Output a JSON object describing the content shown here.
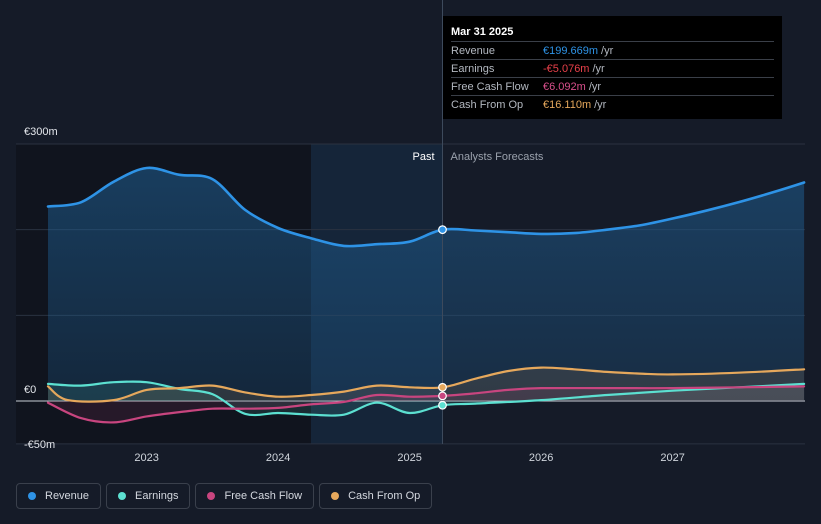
{
  "chart_data": {
    "type": "line",
    "title": "",
    "y_unit": "€",
    "ylim": [
      -50,
      300
    ],
    "y_tick_labels": [
      {
        "value": 300,
        "label": "€300m"
      },
      {
        "value": 0,
        "label": "€0"
      },
      {
        "value": -50,
        "label": "-€50m"
      }
    ],
    "x_range": [
      2022.25,
      2028.0
    ],
    "x_ticks": [
      {
        "value": 2023,
        "label": "2023"
      },
      {
        "value": 2024,
        "label": "2024"
      },
      {
        "value": 2025,
        "label": "2025"
      },
      {
        "value": 2026,
        "label": "2026"
      },
      {
        "value": 2027,
        "label": "2027"
      }
    ],
    "divider_x": 2025.25,
    "highlight_start_x": 2024.25,
    "past_label": "Past",
    "forecast_label": "Analysts Forecasts",
    "series": [
      {
        "name": "Revenue",
        "color": "#2e93e6",
        "fill": true,
        "points": [
          [
            2022.25,
            227
          ],
          [
            2022.5,
            232
          ],
          [
            2022.75,
            256
          ],
          [
            2023.0,
            272
          ],
          [
            2023.25,
            264
          ],
          [
            2023.5,
            259
          ],
          [
            2023.75,
            223
          ],
          [
            2024.0,
            202
          ],
          [
            2024.25,
            190
          ],
          [
            2024.5,
            181
          ],
          [
            2024.75,
            183
          ],
          [
            2025.0,
            186
          ],
          [
            2025.25,
            200
          ],
          [
            2025.5,
            199
          ],
          [
            2025.75,
            197
          ],
          [
            2026.0,
            195
          ],
          [
            2026.25,
            196
          ],
          [
            2026.5,
            200
          ],
          [
            2026.75,
            205
          ],
          [
            2027.0,
            213
          ],
          [
            2027.25,
            222
          ],
          [
            2027.5,
            232
          ],
          [
            2027.75,
            243
          ],
          [
            2028.0,
            255
          ]
        ]
      },
      {
        "name": "Earnings",
        "color": "#5ce0d1",
        "fill": false,
        "points": [
          [
            2022.25,
            20
          ],
          [
            2022.5,
            18
          ],
          [
            2022.75,
            22
          ],
          [
            2023.0,
            22
          ],
          [
            2023.25,
            14
          ],
          [
            2023.5,
            8
          ],
          [
            2023.75,
            -15
          ],
          [
            2024.0,
            -14
          ],
          [
            2024.25,
            -16
          ],
          [
            2024.5,
            -16
          ],
          [
            2024.75,
            -2
          ],
          [
            2025.0,
            -14
          ],
          [
            2025.25,
            -5
          ],
          [
            2025.5,
            -3
          ],
          [
            2026.0,
            1
          ],
          [
            2026.5,
            7
          ],
          [
            2027.0,
            12
          ],
          [
            2027.5,
            16
          ],
          [
            2028.0,
            20
          ]
        ]
      },
      {
        "name": "Free Cash Flow",
        "color": "#c8457f",
        "fill": false,
        "points": [
          [
            2022.25,
            -2
          ],
          [
            2022.5,
            -20
          ],
          [
            2022.75,
            -25
          ],
          [
            2023.0,
            -18
          ],
          [
            2023.25,
            -13
          ],
          [
            2023.5,
            -9
          ],
          [
            2023.75,
            -9
          ],
          [
            2024.0,
            -8
          ],
          [
            2024.25,
            -4
          ],
          [
            2024.5,
            -1
          ],
          [
            2024.75,
            7
          ],
          [
            2025.0,
            5
          ],
          [
            2025.25,
            6
          ],
          [
            2025.5,
            9
          ],
          [
            2025.75,
            13
          ],
          [
            2026.0,
            15
          ],
          [
            2026.5,
            15
          ],
          [
            2027.0,
            15
          ],
          [
            2027.5,
            16
          ],
          [
            2028.0,
            17
          ]
        ]
      },
      {
        "name": "Cash From Op",
        "color": "#e6a85c",
        "fill": false,
        "points": [
          [
            2022.25,
            17
          ],
          [
            2022.4,
            1
          ],
          [
            2022.75,
            1
          ],
          [
            2023.0,
            13
          ],
          [
            2023.25,
            15
          ],
          [
            2023.5,
            18
          ],
          [
            2023.75,
            10
          ],
          [
            2024.0,
            5
          ],
          [
            2024.25,
            7
          ],
          [
            2024.5,
            11
          ],
          [
            2024.75,
            18
          ],
          [
            2025.0,
            16
          ],
          [
            2025.25,
            16
          ],
          [
            2025.5,
            26
          ],
          [
            2025.75,
            35
          ],
          [
            2026.0,
            39
          ],
          [
            2026.25,
            37
          ],
          [
            2026.5,
            34
          ],
          [
            2026.75,
            32
          ],
          [
            2027.0,
            31
          ],
          [
            2027.5,
            33
          ],
          [
            2028.0,
            37
          ]
        ]
      }
    ],
    "markers": [
      {
        "series": "Revenue",
        "x": 2025.25,
        "y": 200
      },
      {
        "series": "Earnings",
        "x": 2025.25,
        "y": -5
      },
      {
        "series": "Free Cash Flow",
        "x": 2025.25,
        "y": 6
      },
      {
        "series": "Cash From Op",
        "x": 2025.25,
        "y": 16
      }
    ]
  },
  "tooltip": {
    "date": "Mar 31 2025",
    "rows": [
      {
        "name": "Revenue",
        "value": "€199.669m",
        "unit": "/yr",
        "color": "#2e93e6"
      },
      {
        "name": "Earnings",
        "value": "-€5.076m",
        "unit": "/yr",
        "color": "#e8404a"
      },
      {
        "name": "Free Cash Flow",
        "value": "€6.092m",
        "unit": "/yr",
        "color": "#d9508c"
      },
      {
        "name": "Cash From Op",
        "value": "€16.110m",
        "unit": "/yr",
        "color": "#e6a85c"
      }
    ]
  },
  "legend": [
    {
      "label": "Revenue",
      "color": "#2e93e6"
    },
    {
      "label": "Earnings",
      "color": "#5ce0d1"
    },
    {
      "label": "Free Cash Flow",
      "color": "#c8457f"
    },
    {
      "label": "Cash From Op",
      "color": "#e6a85c"
    }
  ]
}
